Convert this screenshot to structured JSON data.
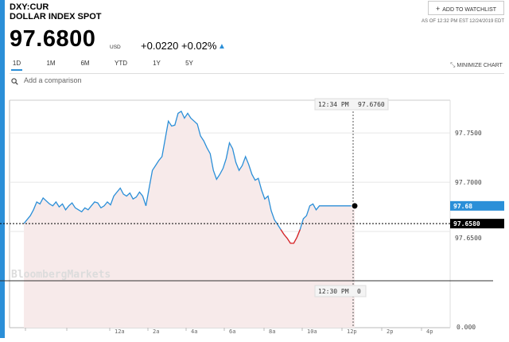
{
  "header": {
    "ticker": "DXY:CUR",
    "name": "DOLLAR INDEX SPOT",
    "watchlist_label": "ADD TO WATCHLIST",
    "as_of": "AS OF 12:32 PM EST 12/24/2019 EDT"
  },
  "quote": {
    "price": "97.6800",
    "currency": "USD",
    "change_abs": "+0.0220",
    "change_pct": "+0.02%",
    "direction": "up"
  },
  "tabs": [
    {
      "label": "1D",
      "active": true
    },
    {
      "label": "1M",
      "active": false
    },
    {
      "label": "6M",
      "active": false
    },
    {
      "label": "YTD",
      "active": false
    },
    {
      "label": "1Y",
      "active": false
    },
    {
      "label": "5Y",
      "active": false
    }
  ],
  "minimize_label": "MINIMIZE CHART",
  "comparison": {
    "placeholder": "Add a comparison"
  },
  "colors": {
    "accent": "#2b8fd8",
    "line": "#2b8fd8",
    "down_segment": "#e8231f",
    "area_fill": "#f7eaea"
  },
  "chart_data": {
    "type": "line",
    "y_tick_labels": [
      "97.7500",
      "97.7000",
      "97.6500",
      "0.000"
    ],
    "y_ticks": [
      97.75,
      97.7,
      97.65
    ],
    "ylim": [
      97.6,
      97.78
    ],
    "x_tick_labels": [
      "",
      "",
      "12a",
      "2a",
      "4a",
      "6a",
      "8a",
      "10a",
      "12p",
      "2p",
      "4p"
    ],
    "crosshair": {
      "time": "12:34 PM",
      "value": "97.6760"
    },
    "crosshair_bottom": {
      "time": "12:30 PM",
      "value": "0"
    },
    "current_label": "97.68",
    "previous_close_label": "97.6580",
    "previous_close": 97.658,
    "watermark": "BloombergMarkets",
    "series": [
      {
        "x": [
          0,
          4,
          8,
          12,
          16,
          20,
          24,
          28,
          32,
          36,
          40,
          44,
          48,
          52,
          56,
          60,
          64,
          68,
          72,
          76,
          80,
          84,
          88,
          92,
          96,
          100,
          104,
          108,
          112,
          116,
          120,
          124,
          128,
          132,
          136,
          140,
          144,
          148,
          152,
          156,
          160,
          164,
          168,
          172,
          176,
          180,
          184,
          188,
          192,
          196,
          200,
          204,
          208,
          212,
          216,
          220,
          224,
          228,
          232,
          236,
          240,
          244,
          248,
          252,
          256,
          260,
          264,
          268,
          272,
          276,
          280,
          284,
          288,
          292,
          296,
          300,
          304,
          308,
          312,
          316,
          320,
          324,
          328,
          332,
          336,
          340,
          344,
          348,
          352,
          356,
          360,
          364,
          368,
          372,
          376,
          380,
          384,
          388,
          392,
          396,
          400,
          404,
          408,
          412
        ],
        "values": [
          97.658,
          97.662,
          97.666,
          97.672,
          97.68,
          97.678,
          97.684,
          97.681,
          97.678,
          97.676,
          97.68,
          97.675,
          97.678,
          97.672,
          97.676,
          97.679,
          97.674,
          97.672,
          97.67,
          97.674,
          97.672,
          97.676,
          97.68,
          97.679,
          97.674,
          97.676,
          97.68,
          97.677,
          97.686,
          97.69,
          97.694,
          97.688,
          97.686,
          97.689,
          97.683,
          97.685,
          97.69,
          97.686,
          97.676,
          97.694,
          97.712,
          97.717,
          97.722,
          97.726,
          97.744,
          97.762,
          97.757,
          97.758,
          97.77,
          97.772,
          97.765,
          97.77,
          97.765,
          97.762,
          97.759,
          97.747,
          97.742,
          97.735,
          97.729,
          97.712,
          97.703,
          97.708,
          97.714,
          97.724,
          97.74,
          97.734,
          97.72,
          97.712,
          97.717,
          97.726,
          97.718,
          97.708,
          97.702,
          97.704,
          97.692,
          97.683,
          97.686,
          97.671,
          97.662,
          97.657,
          97.652,
          97.647,
          97.643,
          97.638,
          97.638,
          97.644,
          97.652,
          97.663,
          97.666,
          97.676,
          97.678,
          97.672,
          97.676,
          97.676,
          97.676,
          97.676,
          97.676,
          97.676,
          97.676,
          97.676,
          97.676,
          97.676,
          97.676,
          97.676
        ]
      }
    ]
  }
}
